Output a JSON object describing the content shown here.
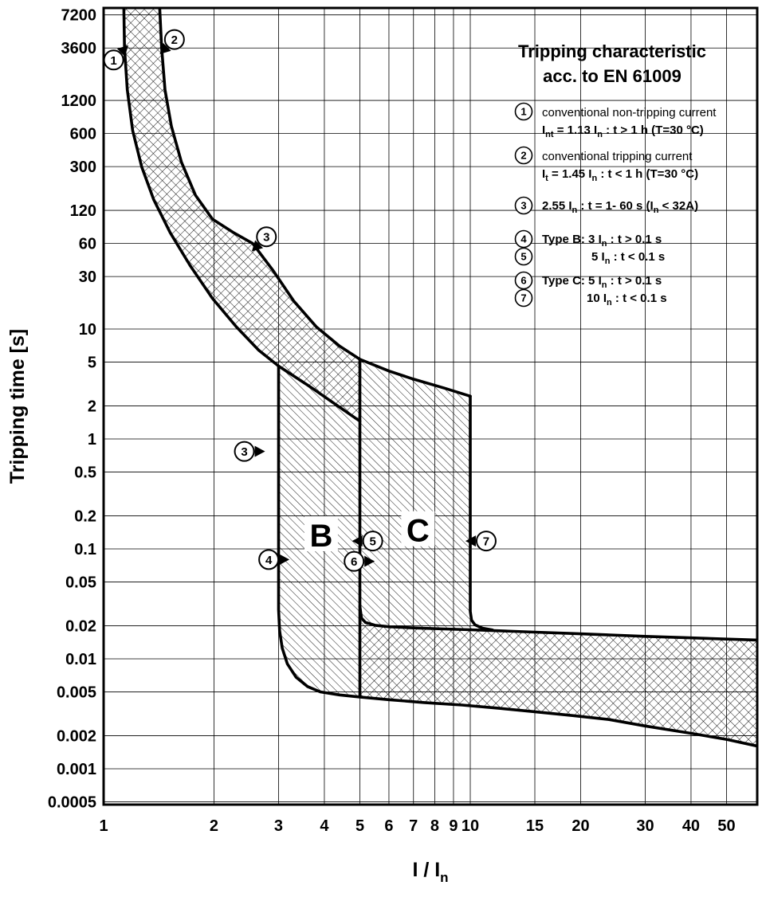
{
  "title": {
    "line1": "Tripping characteristic",
    "line2": "acc. to EN 61009"
  },
  "axes": {
    "x": {
      "label_main": "I / I",
      "label_sub": "n",
      "ticks": [
        "1",
        "2",
        "3",
        "4",
        "5",
        "6",
        "7",
        "8",
        "9",
        "10",
        "15",
        "20",
        "30",
        "40",
        "50"
      ],
      "tick_values": [
        1,
        2,
        3,
        4,
        5,
        6,
        7,
        8,
        9,
        10,
        15,
        20,
        30,
        40,
        50
      ],
      "scale": "log",
      "min": 1,
      "max": 60.7
    },
    "y": {
      "label": "Tripping time [s]",
      "ticks": [
        "7200",
        "3600",
        "1200",
        "600",
        "300",
        "120",
        "60",
        "30",
        "10",
        "5",
        "2",
        "1",
        "0.5",
        "0.2",
        "0.1",
        "0.05",
        "0.02",
        "0.01",
        "0.005",
        "0.002",
        "0.001",
        "0.0005"
      ],
      "tick_values": [
        7200,
        3600,
        1200,
        600,
        300,
        120,
        60,
        30,
        10,
        5,
        2,
        1,
        0.5,
        0.2,
        0.1,
        0.05,
        0.02,
        0.01,
        0.005,
        0.002,
        0.001,
        0.0005
      ],
      "scale": "log",
      "min": 0.00045,
      "max": 9000
    }
  },
  "legend": {
    "items": [
      {
        "num": "1",
        "desc": "conventional non-tripping current",
        "formula": "I_{nt} = 1.13 I_{n} : t > 1 h   (T=30 °C)"
      },
      {
        "num": "2",
        "desc": "conventional tripping current",
        "formula": "I_{t} = 1.45 I_{n} : t < 1 h   (T=30 °C)"
      },
      {
        "num": "3",
        "formula": "2.55 I_{n} : t = 1- 60 s (I_{n} < 32A)"
      },
      {
        "num": "4",
        "formula": "Type B: 3 I_{n} : t > 0.1 s"
      },
      {
        "num": "5",
        "formula": "5 I_{n} : t < 0.1 s",
        "indent": 742
      },
      {
        "num": "6",
        "formula": "Type C: 5 I_{n} : t > 0.1 s"
      },
      {
        "num": "7",
        "formula": "10 I_{n} : t < 0.1 s",
        "indent": 736
      }
    ]
  },
  "chart_data": {
    "type": "line",
    "title": "Tripping characteristic acc. to EN 61009",
    "xlabel": "I / In",
    "ylabel": "Tripping time [s]",
    "xscale": "log",
    "yscale": "log",
    "xlim": [
      1,
      60.7
    ],
    "ylim": [
      0.00045,
      9000
    ],
    "grid": true,
    "colors": {
      "line": "#000000",
      "background": "#ffffff"
    },
    "curves": [
      {
        "name": "curve1-non-tripping-boundary",
        "points": [
          [
            1.135,
            9000
          ],
          [
            1.14,
            3600
          ],
          [
            1.16,
            1500
          ],
          [
            1.2,
            640
          ],
          [
            1.27,
            300
          ],
          [
            1.37,
            150
          ],
          [
            1.52,
            75
          ],
          [
            1.72,
            38
          ],
          [
            1.98,
            19
          ],
          [
            2.3,
            10.5
          ],
          [
            2.65,
            6.4
          ],
          [
            3.0,
            4.6
          ],
          [
            3.65,
            3.0
          ],
          [
            4.35,
            2.0
          ],
          [
            5.0,
            1.45
          ]
        ]
      },
      {
        "name": "curve2-tripping-boundary",
        "points": [
          [
            1.42,
            9000
          ],
          [
            1.44,
            3600
          ],
          [
            1.47,
            1500
          ],
          [
            1.53,
            700
          ],
          [
            1.63,
            330
          ],
          [
            1.78,
            165
          ],
          [
            1.98,
            100
          ],
          [
            2.25,
            76
          ],
          [
            2.55,
            60
          ],
          [
            2.9,
            34
          ],
          [
            3.3,
            18
          ],
          [
            3.8,
            10.5
          ],
          [
            4.4,
            7.0
          ],
          [
            5.0,
            5.3
          ],
          [
            6.0,
            4.15
          ],
          [
            7.0,
            3.5
          ],
          [
            8.5,
            2.9
          ],
          [
            10.0,
            2.45
          ]
        ]
      },
      {
        "name": "type-b-lower-instant-boundary-3in",
        "points": [
          [
            3.0,
            4.6
          ],
          [
            3.0,
            0.028
          ],
          [
            3.02,
            0.018
          ],
          [
            3.07,
            0.0125
          ],
          [
            3.17,
            0.009
          ],
          [
            3.35,
            0.0068
          ],
          [
            3.6,
            0.0056
          ],
          [
            3.9,
            0.005
          ],
          [
            4.4,
            0.0047
          ],
          [
            5.0,
            0.0045
          ],
          [
            6.0,
            0.00425
          ],
          [
            7.5,
            0.004
          ],
          [
            9.5,
            0.0038
          ],
          [
            12,
            0.00355
          ],
          [
            15,
            0.0033
          ],
          [
            19,
            0.00305
          ],
          [
            24,
            0.0028
          ],
          [
            30,
            0.00245
          ],
          [
            40,
            0.0021
          ],
          [
            50,
            0.00185
          ],
          [
            61,
            0.0016
          ]
        ]
      },
      {
        "name": "type-b-upper-instant-boundary-5in",
        "points": [
          [
            5.0,
            5.3
          ],
          [
            5.0,
            0.03
          ],
          [
            5.05,
            0.0235
          ],
          [
            5.18,
            0.0214
          ],
          [
            5.5,
            0.0202
          ],
          [
            6.0,
            0.0196
          ],
          [
            7.0,
            0.0191
          ],
          [
            8.5,
            0.0187
          ],
          [
            10,
            0.0184
          ],
          [
            12,
            0.018
          ],
          [
            15,
            0.0175
          ],
          [
            19,
            0.017
          ],
          [
            24,
            0.0165
          ],
          [
            30,
            0.016
          ],
          [
            38,
            0.0156
          ],
          [
            48,
            0.0152
          ],
          [
            61,
            0.0148
          ]
        ]
      },
      {
        "name": "type-c-upper-instant-boundary-10in",
        "points": [
          [
            10,
            2.45
          ],
          [
            10,
            0.027
          ],
          [
            10.08,
            0.0225
          ],
          [
            10.3,
            0.0204
          ],
          [
            10.8,
            0.019
          ],
          [
            11.5,
            0.0183
          ]
        ]
      },
      {
        "name": "five-in-separator",
        "points": [
          [
            5.0,
            0.03
          ],
          [
            5.0,
            0.0045
          ]
        ]
      }
    ],
    "regions": [
      {
        "name": "thermal-tolerance-band",
        "hatch": "cross",
        "points": [
          [
            1.135,
            9000
          ],
          [
            1.14,
            3600
          ],
          [
            1.16,
            1500
          ],
          [
            1.2,
            640
          ],
          [
            1.27,
            300
          ],
          [
            1.37,
            150
          ],
          [
            1.52,
            75
          ],
          [
            1.72,
            38
          ],
          [
            1.98,
            19
          ],
          [
            2.3,
            10.5
          ],
          [
            2.65,
            6.4
          ],
          [
            3.0,
            4.6
          ],
          [
            3.65,
            3.0
          ],
          [
            4.35,
            2.0
          ],
          [
            5.0,
            1.45
          ],
          [
            5.0,
            5.3
          ],
          [
            4.4,
            7.0
          ],
          [
            3.8,
            10.5
          ],
          [
            3.3,
            18
          ],
          [
            2.9,
            34
          ],
          [
            2.55,
            60
          ],
          [
            2.25,
            76
          ],
          [
            1.98,
            100
          ],
          [
            1.78,
            165
          ],
          [
            1.63,
            330
          ],
          [
            1.53,
            700
          ],
          [
            1.47,
            1500
          ],
          [
            1.44,
            3600
          ],
          [
            1.42,
            9000
          ]
        ]
      },
      {
        "name": "type-b-region",
        "hatch": "diag",
        "points": [
          [
            3.0,
            4.6
          ],
          [
            3.65,
            3.0
          ],
          [
            4.35,
            2.0
          ],
          [
            5.0,
            1.45
          ],
          [
            5.0,
            0.0045
          ],
          [
            4.4,
            0.0047
          ],
          [
            3.9,
            0.005
          ],
          [
            3.6,
            0.0056
          ],
          [
            3.35,
            0.0068
          ],
          [
            3.17,
            0.009
          ],
          [
            3.07,
            0.0125
          ],
          [
            3.02,
            0.018
          ],
          [
            3.0,
            0.028
          ]
        ]
      },
      {
        "name": "type-c-region",
        "hatch": "diag",
        "points": [
          [
            5.0,
            5.3
          ],
          [
            6.0,
            4.15
          ],
          [
            7.0,
            3.5
          ],
          [
            8.5,
            2.9
          ],
          [
            10,
            2.45
          ],
          [
            10,
            0.027
          ],
          [
            10.08,
            0.0225
          ],
          [
            10.3,
            0.0204
          ],
          [
            10.8,
            0.019
          ],
          [
            10,
            0.0184
          ],
          [
            8.5,
            0.0187
          ],
          [
            7.0,
            0.0191
          ],
          [
            6.0,
            0.0196
          ],
          [
            5.5,
            0.0202
          ],
          [
            5.18,
            0.0214
          ],
          [
            5.05,
            0.0235
          ],
          [
            5.0,
            0.03
          ]
        ]
      },
      {
        "name": "instantaneous-tolerance-band",
        "hatch": "cross",
        "points": [
          [
            5.0,
            0.03
          ],
          [
            5.05,
            0.0235
          ],
          [
            5.18,
            0.0214
          ],
          [
            5.5,
            0.0202
          ],
          [
            6.0,
            0.0196
          ],
          [
            7.0,
            0.0191
          ],
          [
            8.5,
            0.0187
          ],
          [
            10,
            0.0184
          ],
          [
            12,
            0.018
          ],
          [
            15,
            0.0175
          ],
          [
            19,
            0.017
          ],
          [
            24,
            0.0165
          ],
          [
            30,
            0.016
          ],
          [
            38,
            0.0156
          ],
          [
            48,
            0.0152
          ],
          [
            61,
            0.0148
          ],
          [
            61,
            0.0016
          ],
          [
            50,
            0.00185
          ],
          [
            40,
            0.0021
          ],
          [
            30,
            0.00245
          ],
          [
            24,
            0.0028
          ],
          [
            19,
            0.00305
          ],
          [
            15,
            0.0033
          ],
          [
            12,
            0.00355
          ],
          [
            9.5,
            0.0038
          ],
          [
            7.5,
            0.004
          ],
          [
            6.0,
            0.00425
          ],
          [
            5.0,
            0.0045
          ]
        ]
      }
    ],
    "markers": [
      {
        "num": "1",
        "I": 1.065,
        "t": 2800,
        "dir": "ne"
      },
      {
        "num": "2",
        "I": 1.56,
        "t": 4300,
        "dir": "sw"
      },
      {
        "num": "3",
        "I": 2.78,
        "t": 69,
        "dir": "sw"
      },
      {
        "num": "3",
        "I": 2.42,
        "t": 0.77,
        "dir": "e"
      },
      {
        "num": "4",
        "I": 2.82,
        "t": 0.08,
        "dir": "e"
      },
      {
        "num": "5",
        "I": 5.42,
        "t": 0.118,
        "dir": "w"
      },
      {
        "num": "6",
        "I": 4.82,
        "t": 0.077,
        "dir": "e"
      },
      {
        "num": "7",
        "I": 11.05,
        "t": 0.118,
        "dir": "w"
      }
    ],
    "region_labels": [
      {
        "text": "B",
        "I": 3.92,
        "t": 0.135
      },
      {
        "text": "C",
        "I": 7.2,
        "t": 0.15
      }
    ]
  }
}
